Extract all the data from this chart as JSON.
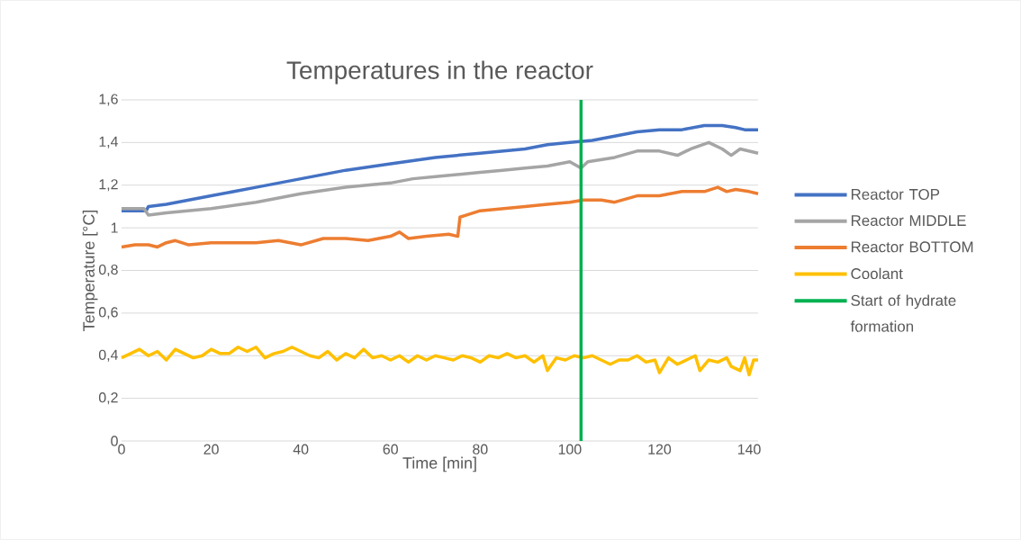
{
  "chart_data": {
    "type": "line",
    "title": "Temperatures in the reactor",
    "xlabel": "Time [min]",
    "ylabel": "Temperature [°C]",
    "xlim": [
      0,
      142
    ],
    "xticks": [
      0,
      20,
      40,
      60,
      80,
      100,
      120,
      140
    ],
    "ylim": [
      0,
      1.6
    ],
    "yticks": [
      0,
      {
        "value": 0.2,
        "label": "0,2"
      },
      {
        "value": 0.4,
        "label": "0,4"
      },
      {
        "value": 0.6,
        "label": "0,6"
      },
      {
        "value": 0.8,
        "label": "0,8"
      },
      1,
      {
        "value": 1.2,
        "label": "1,2"
      },
      {
        "value": 1.4,
        "label": "1,4"
      },
      {
        "value": 1.6,
        "label": "1,6"
      }
    ],
    "grid": "y",
    "legend": "right",
    "series": [
      {
        "name": "Reactor TOP",
        "color": "#4472c4",
        "x": [
          0,
          3,
          5.5,
          6,
          10,
          20,
          30,
          40,
          50,
          60,
          70,
          80,
          90,
          95,
          100,
          105,
          110,
          115,
          120,
          125,
          130,
          134,
          137,
          139,
          142
        ],
        "values": [
          1.08,
          1.08,
          1.08,
          1.1,
          1.11,
          1.15,
          1.19,
          1.23,
          1.27,
          1.3,
          1.33,
          1.35,
          1.37,
          1.39,
          1.4,
          1.41,
          1.43,
          1.45,
          1.46,
          1.46,
          1.48,
          1.48,
          1.47,
          1.46,
          1.46
        ]
      },
      {
        "name": "Reactor MIDDLE",
        "color": "#a5a5a5",
        "x": [
          0,
          5,
          6,
          10,
          20,
          30,
          40,
          50,
          60,
          65,
          70,
          80,
          85,
          90,
          95,
          100,
          102.5,
          104,
          110,
          115,
          120,
          124,
          127,
          131,
          134,
          136,
          138,
          142
        ],
        "values": [
          1.09,
          1.09,
          1.06,
          1.07,
          1.09,
          1.12,
          1.16,
          1.19,
          1.21,
          1.23,
          1.24,
          1.26,
          1.27,
          1.28,
          1.29,
          1.31,
          1.28,
          1.31,
          1.33,
          1.36,
          1.36,
          1.34,
          1.37,
          1.4,
          1.37,
          1.34,
          1.37,
          1.35
        ]
      },
      {
        "name": "Reactor BOTTOM",
        "color": "#ed7d31",
        "x": [
          0,
          3,
          6,
          8,
          10,
          12,
          15,
          20,
          25,
          30,
          35,
          40,
          45,
          50,
          55,
          60,
          62,
          64,
          68,
          73,
          75,
          75.5,
          77,
          80,
          85,
          90,
          95,
          100,
          103,
          107,
          110,
          115,
          120,
          125,
          130,
          133,
          135,
          137,
          140,
          142
        ],
        "values": [
          0.91,
          0.92,
          0.92,
          0.91,
          0.93,
          0.94,
          0.92,
          0.93,
          0.93,
          0.93,
          0.94,
          0.92,
          0.95,
          0.95,
          0.94,
          0.96,
          0.98,
          0.95,
          0.96,
          0.97,
          0.96,
          1.05,
          1.06,
          1.08,
          1.09,
          1.1,
          1.11,
          1.12,
          1.13,
          1.13,
          1.12,
          1.15,
          1.15,
          1.17,
          1.17,
          1.19,
          1.17,
          1.18,
          1.17,
          1.16
        ]
      },
      {
        "name": "Coolant",
        "color": "#ffc000",
        "x": [
          0,
          2,
          4,
          6,
          8,
          10,
          12,
          14,
          16,
          18,
          20,
          22,
          24,
          26,
          28,
          30,
          32,
          34,
          36,
          38,
          40,
          42,
          44,
          46,
          48,
          50,
          52,
          54,
          56,
          58,
          60,
          62,
          64,
          66,
          68,
          70,
          72,
          74,
          76,
          78,
          80,
          82,
          84,
          86,
          88,
          90,
          92,
          94,
          95,
          97,
          99,
          101,
          103,
          105,
          107,
          109,
          111,
          113,
          115,
          117,
          119,
          120,
          122,
          124,
          126,
          128,
          129,
          131,
          133,
          135,
          136,
          138,
          139,
          140,
          141,
          142
        ],
        "values": [
          0.39,
          0.41,
          0.43,
          0.4,
          0.42,
          0.38,
          0.43,
          0.41,
          0.39,
          0.4,
          0.43,
          0.41,
          0.41,
          0.44,
          0.42,
          0.44,
          0.39,
          0.41,
          0.42,
          0.44,
          0.42,
          0.4,
          0.39,
          0.42,
          0.38,
          0.41,
          0.39,
          0.43,
          0.39,
          0.4,
          0.38,
          0.4,
          0.37,
          0.4,
          0.38,
          0.4,
          0.39,
          0.38,
          0.4,
          0.39,
          0.37,
          0.4,
          0.39,
          0.41,
          0.39,
          0.4,
          0.37,
          0.4,
          0.33,
          0.39,
          0.38,
          0.4,
          0.39,
          0.4,
          0.38,
          0.36,
          0.38,
          0.38,
          0.4,
          0.37,
          0.38,
          0.32,
          0.39,
          0.36,
          0.38,
          0.4,
          0.33,
          0.38,
          0.37,
          0.39,
          0.35,
          0.33,
          0.39,
          0.31,
          0.38,
          0.38
        ]
      },
      {
        "name": "Start of hydrate formation",
        "color": "#00b050",
        "x": [
          102.5,
          102.5
        ],
        "values": [
          0,
          1.6
        ]
      }
    ]
  }
}
